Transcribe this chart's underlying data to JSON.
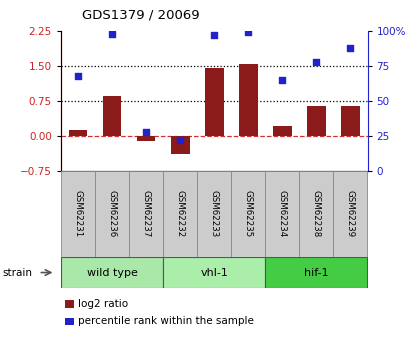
{
  "title": "GDS1379 / 20069",
  "samples": [
    "GSM62231",
    "GSM62236",
    "GSM62237",
    "GSM62232",
    "GSM62233",
    "GSM62235",
    "GSM62234",
    "GSM62238",
    "GSM62239"
  ],
  "log2_ratio": [
    0.12,
    0.85,
    -0.12,
    -0.38,
    1.45,
    1.55,
    0.22,
    0.65,
    0.65
  ],
  "percentile_rank": [
    68,
    98,
    28,
    22,
    97,
    99,
    65,
    78,
    88
  ],
  "groups": [
    {
      "label": "wild type",
      "start": 0,
      "end": 3,
      "color": "#aae8aa"
    },
    {
      "label": "vhl-1",
      "start": 3,
      "end": 6,
      "color": "#aaeeaa"
    },
    {
      "label": "hif-1",
      "start": 6,
      "end": 9,
      "color": "#44cc44"
    }
  ],
  "ylim_left": [
    -0.75,
    2.25
  ],
  "ylim_right": [
    0,
    100
  ],
  "yticks_left": [
    -0.75,
    0,
    0.75,
    1.5,
    2.25
  ],
  "yticks_right": [
    0,
    25,
    50,
    75,
    100
  ],
  "hline_dotted": [
    0.75,
    1.5
  ],
  "hline_dashed_color": "#cc3333",
  "bar_color": "#8b1a1a",
  "dot_color": "#2222cc",
  "left_tick_color": "#cc2222",
  "right_tick_color": "#2222cc",
  "legend_bar_label": "log2 ratio",
  "legend_dot_label": "percentile rank within the sample",
  "group_row_label": "strain",
  "sample_box_color": "#cccccc",
  "sample_box_edge": "#888888"
}
